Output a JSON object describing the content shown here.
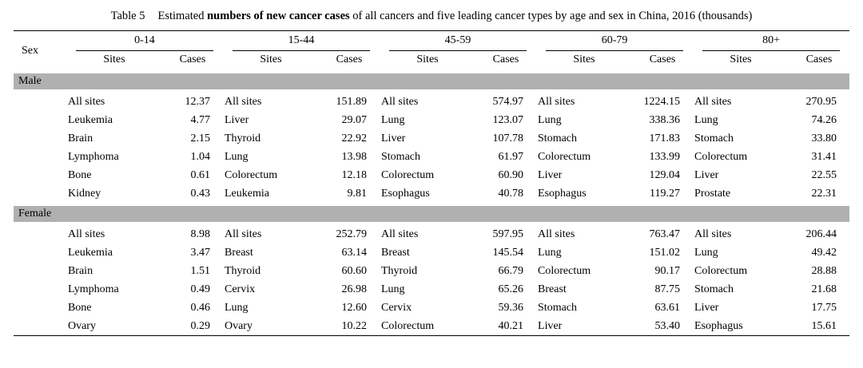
{
  "title": {
    "table_label": "Table 5",
    "text_before_bold": "Estimated ",
    "bold_text": "numbers of new cancer cases",
    "text_after_bold": " of all cancers and five leading cancer types by age and sex in China, 2016 (thousands)"
  },
  "header": {
    "sex": "Sex",
    "age_groups": [
      "0-14",
      "15-44",
      "45-59",
      "60-79",
      "80+"
    ],
    "sites_label": "Sites",
    "cases_label": "Cases"
  },
  "sections": [
    {
      "label": "Male",
      "rows": [
        [
          "All sites",
          "12.37",
          "All sites",
          "151.89",
          "All sites",
          "574.97",
          "All sites",
          "1224.15",
          "All sites",
          "270.95"
        ],
        [
          "Leukemia",
          "4.77",
          "Liver",
          "29.07",
          "Lung",
          "123.07",
          "Lung",
          "338.36",
          "Lung",
          "74.26"
        ],
        [
          "Brain",
          "2.15",
          "Thyroid",
          "22.92",
          "Liver",
          "107.78",
          "Stomach",
          "171.83",
          "Stomach",
          "33.80"
        ],
        [
          "Lymphoma",
          "1.04",
          "Lung",
          "13.98",
          "Stomach",
          "61.97",
          "Colorectum",
          "133.99",
          "Colorectum",
          "31.41"
        ],
        [
          "Bone",
          "0.61",
          "Colorectum",
          "12.18",
          "Colorectum",
          "60.90",
          "Liver",
          "129.04",
          "Liver",
          "22.55"
        ],
        [
          "Kidney",
          "0.43",
          "Leukemia",
          "9.81",
          "Esophagus",
          "40.78",
          "Esophagus",
          "119.27",
          "Prostate",
          "22.31"
        ]
      ]
    },
    {
      "label": "Female",
      "rows": [
        [
          "All sites",
          "8.98",
          "All sites",
          "252.79",
          "All sites",
          "597.95",
          "All sites",
          "763.47",
          "All sites",
          "206.44"
        ],
        [
          "Leukemia",
          "3.47",
          "Breast",
          "63.14",
          "Breast",
          "145.54",
          "Lung",
          "151.02",
          "Lung",
          "49.42"
        ],
        [
          "Brain",
          "1.51",
          "Thyroid",
          "60.60",
          "Thyroid",
          "66.79",
          "Colorectum",
          "90.17",
          "Colorectum",
          "28.88"
        ],
        [
          "Lymphoma",
          "0.49",
          "Cervix",
          "26.98",
          "Lung",
          "65.26",
          "Breast",
          "87.75",
          "Stomach",
          "21.68"
        ],
        [
          "Bone",
          "0.46",
          "Lung",
          "12.60",
          "Cervix",
          "59.36",
          "Stomach",
          "63.61",
          "Liver",
          "17.75"
        ],
        [
          "Ovary",
          "0.29",
          "Ovary",
          "10.22",
          "Colorectum",
          "40.21",
          "Liver",
          "53.40",
          "Esophagus",
          "15.61"
        ]
      ]
    }
  ]
}
